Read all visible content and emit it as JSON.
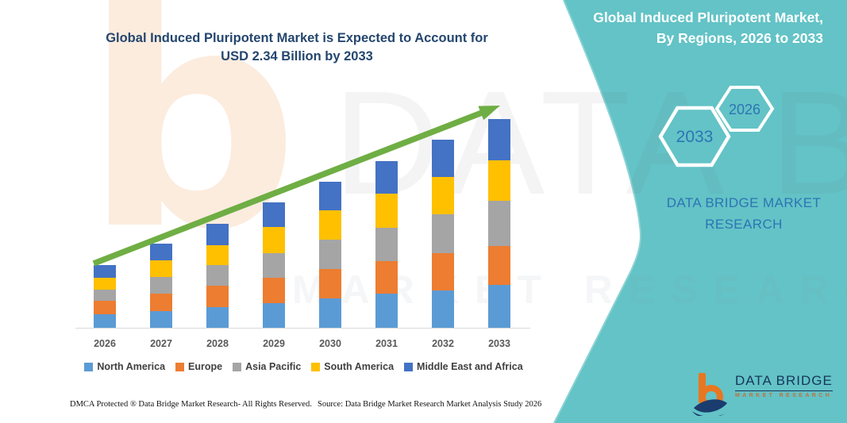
{
  "title": {
    "line1": "Global Induced Pluripotent Market is Expected to Account for",
    "line2": "USD 2.34 Billion by 2033"
  },
  "panel": {
    "heading_line1": "Global Induced Pluripotent Market,",
    "heading_line2": "By Regions, 2026 to 2033",
    "brand_line1": "DATA BRIDGE MARKET",
    "brand_line2": "RESEARCH",
    "hexagon_left_label": "2033",
    "hexagon_right_label": "2026",
    "bg_color": "#63C3C6",
    "text_color": "#2E74B5"
  },
  "watermarks": {
    "letter": "b",
    "brand": "DATA BRIDGE",
    "market": "MARKET RESEARCH"
  },
  "logo": {
    "name": "DATA BRIDGE",
    "sub": "MARKET RESEARCH"
  },
  "footer": {
    "left": "DMCA Protected ® Data Bridge Market Research-  All Rights Reserved.",
    "source": "Source: Data Bridge Market Research  Market Analysis Study 2026"
  },
  "chart_data": {
    "type": "bar",
    "subtype": "stacked",
    "title": "Global Induced Pluripotent Market is Expected to Account for USD 2.34 Billion by 2033",
    "unit": "USD Billion",
    "categories": [
      "2026",
      "2027",
      "2028",
      "2029",
      "2030",
      "2031",
      "2032",
      "2033"
    ],
    "series": [
      {
        "name": "North America",
        "color": "#5B9BD5",
        "values": [
          0.15,
          0.19,
          0.23,
          0.28,
          0.33,
          0.38,
          0.42,
          0.48
        ]
      },
      {
        "name": "Europe",
        "color": "#ED7D31",
        "values": [
          0.15,
          0.19,
          0.24,
          0.28,
          0.33,
          0.37,
          0.42,
          0.44
        ]
      },
      {
        "name": "Asia Pacific",
        "color": "#A5A5A5",
        "values": [
          0.13,
          0.19,
          0.23,
          0.28,
          0.33,
          0.37,
          0.43,
          0.5
        ]
      },
      {
        "name": "South America",
        "color": "#FFC000",
        "values": [
          0.13,
          0.19,
          0.23,
          0.29,
          0.33,
          0.38,
          0.42,
          0.46
        ]
      },
      {
        "name": "Middle East and Africa",
        "color": "#4472C4",
        "values": [
          0.14,
          0.18,
          0.24,
          0.28,
          0.32,
          0.37,
          0.42,
          0.46
        ]
      }
    ],
    "totals": [
      0.7,
      0.94,
      1.17,
      1.41,
      1.64,
      1.87,
      2.11,
      2.34
    ],
    "ylim": [
      0,
      2.5
    ],
    "grid": false,
    "legend_position": "bottom",
    "trend_arrow": true,
    "trend_arrow_color": "#6FAE44"
  }
}
